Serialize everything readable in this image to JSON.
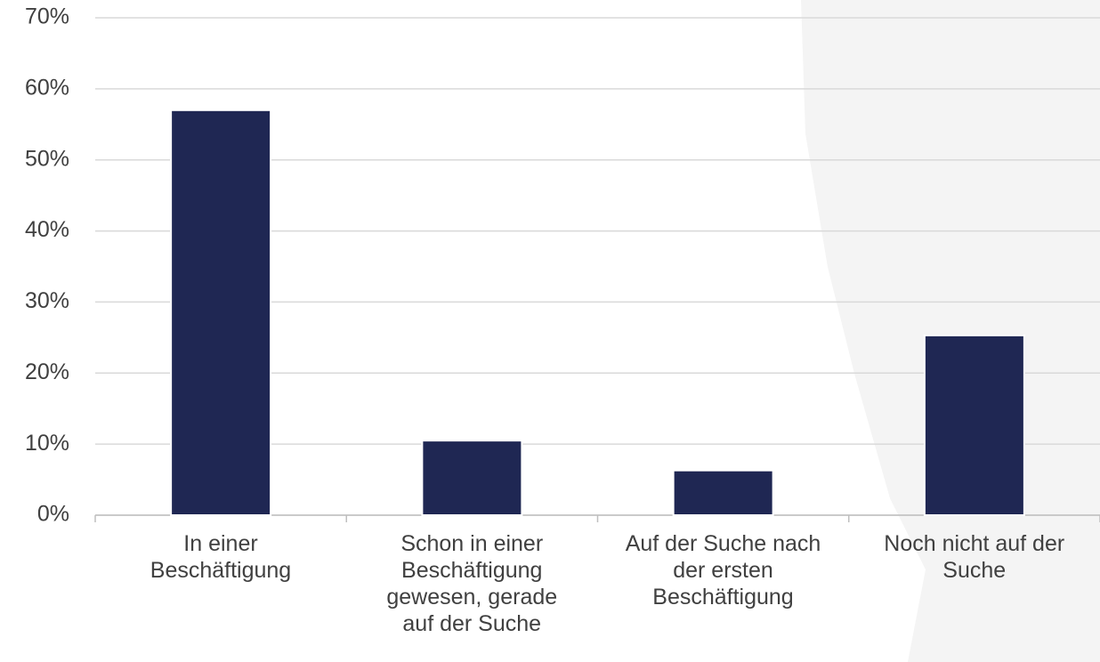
{
  "chart_data": {
    "type": "bar",
    "categories": [
      "In einer\nBeschäftigung",
      "Schon in einer\nBeschäftigung\ngewesen, gerade\nauf der Suche",
      "Auf der Suche nach\nder ersten\nBeschäftigung",
      "Noch nicht auf der\nSuche"
    ],
    "values": [
      57,
      10.5,
      6.3,
      25.3
    ],
    "color": "#1f2753",
    "ylim": [
      0,
      70
    ],
    "yticks": [
      {
        "value": 0,
        "label": "0%"
      },
      {
        "value": 10,
        "label": "10%"
      },
      {
        "value": 20,
        "label": "20%"
      },
      {
        "value": 30,
        "label": "30%"
      },
      {
        "value": 40,
        "label": "40%"
      },
      {
        "value": 50,
        "label": "50%"
      },
      {
        "value": 60,
        "label": "60%"
      },
      {
        "value": 70,
        "label": "70%"
      }
    ],
    "grid": true
  }
}
